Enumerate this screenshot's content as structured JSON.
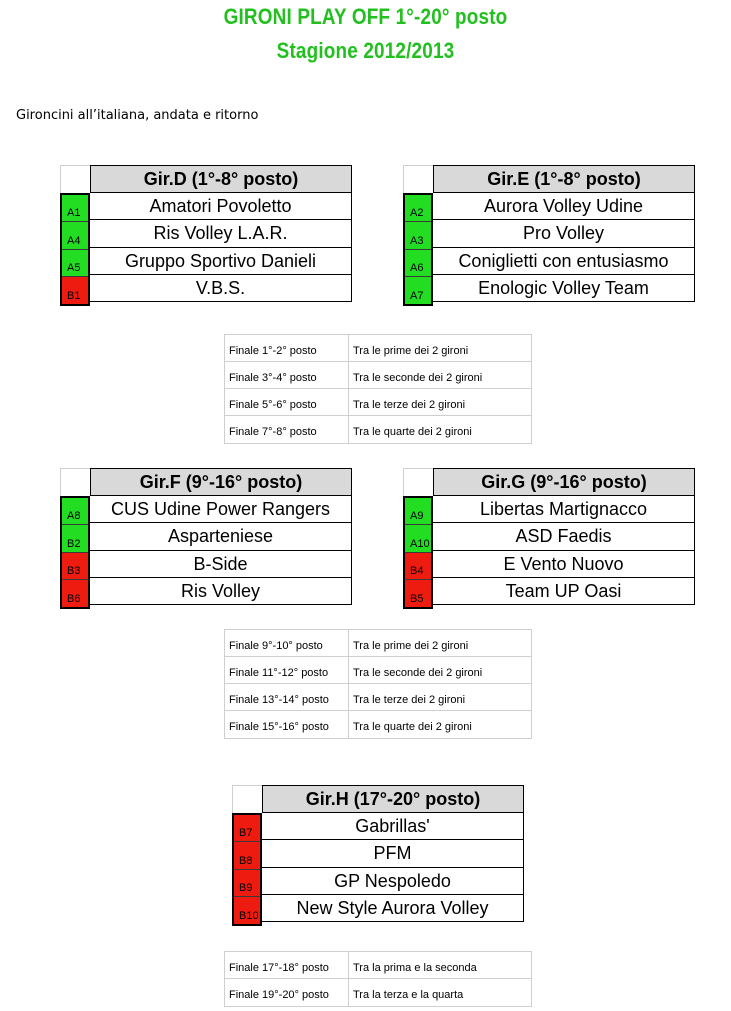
{
  "header": {
    "title_line1": "GIRONI PLAY OFF 1°-20° posto",
    "title_line2": "Stagione 2012/2013",
    "subtitle": "Gironcini all’italiana, andata e ritorno"
  },
  "colors": {
    "title": "#22c01f",
    "qualified": "#22dd22",
    "other": "#ee1c10",
    "header_bg": "#d9d9d9"
  },
  "groups": [
    {
      "title": "Gir.D (1°-8° posto)",
      "rows": [
        {
          "code": "A1",
          "team": "Amatori Povoletto",
          "color": "green"
        },
        {
          "code": "A4",
          "team": "Ris Volley L.A.R.",
          "color": "green"
        },
        {
          "code": "A5",
          "team": "Gruppo Sportivo Danieli",
          "color": "green"
        },
        {
          "code": "B1",
          "team": "V.B.S.",
          "color": "red"
        }
      ]
    },
    {
      "title": "Gir.E (1°-8° posto)",
      "rows": [
        {
          "code": "A2",
          "team": "Aurora Volley Udine",
          "color": "green"
        },
        {
          "code": "A3",
          "team": "Pro Volley",
          "color": "green"
        },
        {
          "code": "A6",
          "team": "Coniglietti con entusiasmo",
          "color": "green"
        },
        {
          "code": "A7",
          "team": "Enologic Volley Team",
          "color": "green"
        }
      ]
    },
    {
      "title": "Gir.F (9°-16° posto)",
      "rows": [
        {
          "code": "A8",
          "team": "CUS Udine Power Rangers",
          "color": "green"
        },
        {
          "code": "B2",
          "team": "Asparteniese",
          "color": "green"
        },
        {
          "code": "B3",
          "team": "B-Side",
          "color": "red"
        },
        {
          "code": "B6",
          "team": "Ris Volley",
          "color": "red"
        }
      ]
    },
    {
      "title": "Gir.G (9°-16° posto)",
      "rows": [
        {
          "code": "A9",
          "team": "Libertas Martignacco",
          "color": "green"
        },
        {
          "code": "A10",
          "team": "ASD Faedis",
          "color": "green"
        },
        {
          "code": "B4",
          "team": "E Vento Nuovo",
          "color": "red"
        },
        {
          "code": "B5",
          "team": "Team UP Oasi",
          "color": "red"
        }
      ]
    },
    {
      "title": "Gir.H (17°-20° posto)",
      "rows": [
        {
          "code": "B7",
          "team": "Gabrillas'",
          "color": "red"
        },
        {
          "code": "B8",
          "team": "PFM",
          "color": "red"
        },
        {
          "code": "B9",
          "team": "GP Nespoledo",
          "color": "red"
        },
        {
          "code": "B10",
          "team": "New Style Aurora Volley",
          "color": "red"
        }
      ]
    }
  ],
  "finals": [
    {
      "rows": [
        {
          "label": "Finale 1°-2° posto",
          "desc": "Tra le prime dei 2 gironi"
        },
        {
          "label": "Finale 3°-4° posto",
          "desc": "Tra le seconde dei 2 gironi"
        },
        {
          "label": "Finale 5°-6° posto",
          "desc": "Tra le terze dei 2 gironi"
        },
        {
          "label": "Finale 7°-8° posto",
          "desc": "Tra le quarte dei 2 gironi"
        }
      ]
    },
    {
      "rows": [
        {
          "label": "Finale 9°-10° posto",
          "desc": "Tra le prime dei 2 gironi"
        },
        {
          "label": "Finale 11°-12° posto",
          "desc": "Tra le seconde dei 2 gironi"
        },
        {
          "label": "Finale 13°-14° posto",
          "desc": "Tra le terze dei 2 gironi"
        },
        {
          "label": "Finale 15°-16° posto",
          "desc": "Tra le quarte dei 2 gironi"
        }
      ]
    },
    {
      "rows": [
        {
          "label": "Finale 17°-18° posto",
          "desc": "Tra la prima e la seconda"
        },
        {
          "label": "Finale 19°-20° posto",
          "desc": "Tra la terza e la quarta"
        }
      ]
    }
  ]
}
